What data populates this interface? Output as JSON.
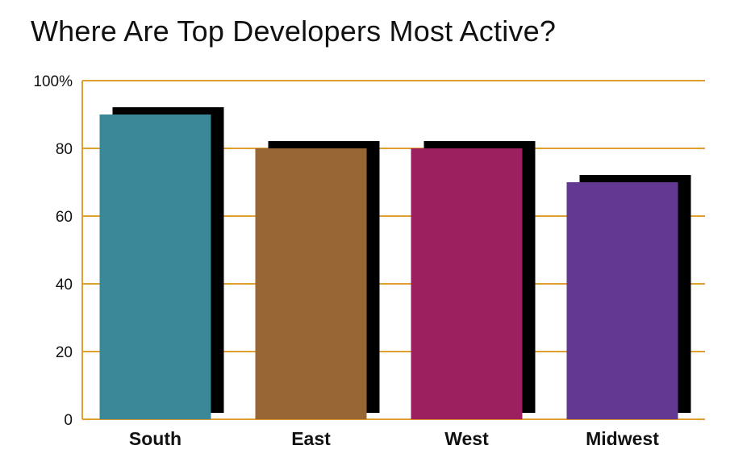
{
  "chart_data": {
    "type": "bar",
    "title": "Where Are Top Developers Most Active?",
    "xlabel": "",
    "ylabel": "",
    "categories": [
      "South",
      "East",
      "West",
      "Midwest"
    ],
    "values": [
      90,
      80,
      80,
      70
    ],
    "ylim": [
      0,
      100
    ],
    "yticks": [
      "0",
      "20",
      "40",
      "60",
      "80",
      "100%"
    ],
    "grid": true,
    "legend": "none",
    "colors": {
      "bars": [
        "#3a8798",
        "#986634",
        "#9c1f60",
        "#633893"
      ],
      "shadow": "#000000",
      "grid": "#e0a030",
      "text": "#111111"
    }
  }
}
